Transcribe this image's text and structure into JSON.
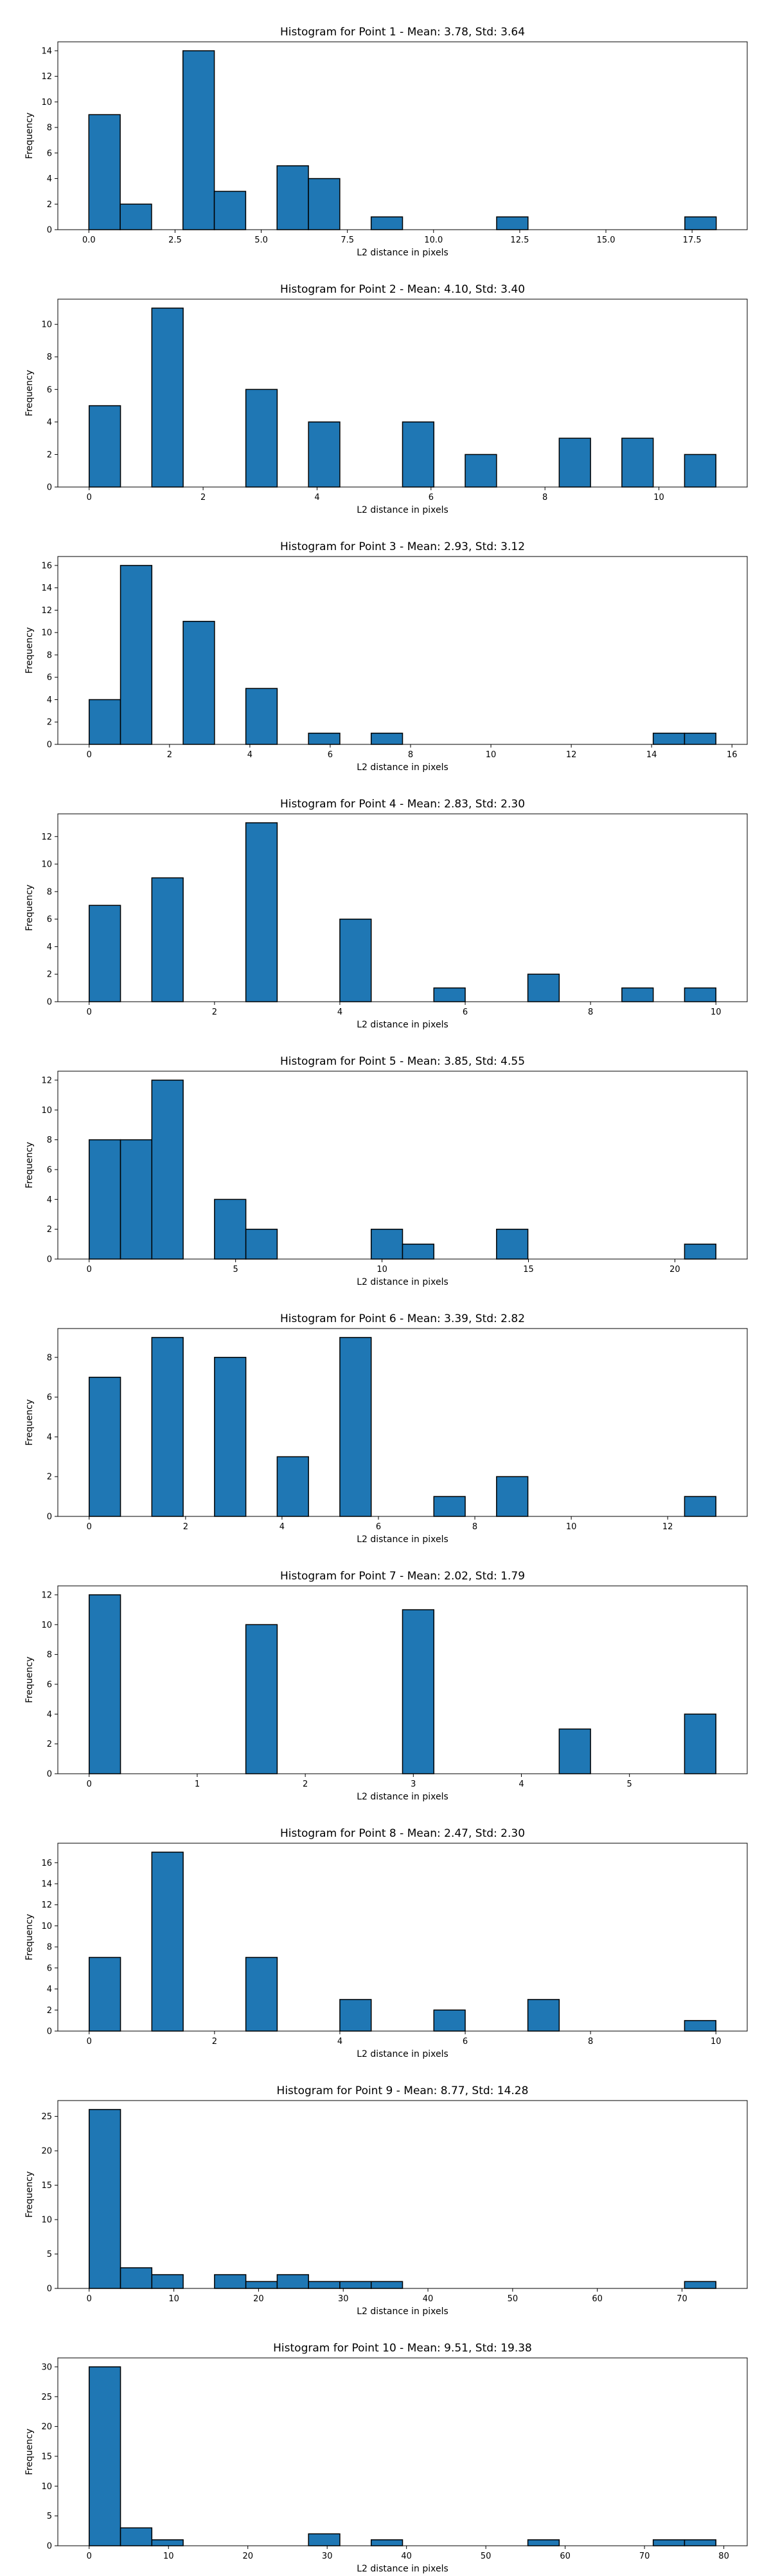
{
  "figure": {
    "bar_color": "#1f77b4",
    "edge_color": "#000000"
  },
  "chart_data": [
    {
      "type": "bar",
      "title": "Histogram for Point 1 - Mean: 3.78, Std: 3.64",
      "xlabel": "L2 distance in pixels",
      "ylabel": "Frequency",
      "xlim": [
        -0.9,
        19.1
      ],
      "ylim": [
        0,
        14.7
      ],
      "xticks": [
        0.0,
        2.5,
        5.0,
        7.5,
        10.0,
        12.5,
        15.0,
        17.5
      ],
      "xtick_labels": [
        "0.0",
        "2.5",
        "5.0",
        "7.5",
        "10.0",
        "12.5",
        "15.0",
        "17.5"
      ],
      "yticks": [
        0,
        2,
        4,
        6,
        8,
        10,
        12,
        14
      ],
      "bins": [
        {
          "x0": 0.0,
          "x1": 0.91,
          "count": 9
        },
        {
          "x0": 0.91,
          "x1": 1.82,
          "count": 2
        },
        {
          "x0": 2.73,
          "x1": 3.64,
          "count": 14
        },
        {
          "x0": 3.64,
          "x1": 4.55,
          "count": 3
        },
        {
          "x0": 5.46,
          "x1": 6.37,
          "count": 5
        },
        {
          "x0": 6.37,
          "x1": 7.28,
          "count": 4
        },
        {
          "x0": 8.19,
          "x1": 9.1,
          "count": 1
        },
        {
          "x0": 11.83,
          "x1": 12.74,
          "count": 1
        },
        {
          "x0": 17.29,
          "x1": 18.2,
          "count": 1
        }
      ]
    },
    {
      "type": "bar",
      "title": "Histogram for Point 2 - Mean: 4.10, Std: 3.40",
      "xlabel": "L2 distance in pixels",
      "ylabel": "Frequency",
      "xlim": [
        -0.55,
        11.55
      ],
      "ylim": [
        0,
        11.55
      ],
      "xticks": [
        0,
        2,
        4,
        6,
        8,
        10
      ],
      "xtick_labels": [
        "0",
        "2",
        "4",
        "6",
        "8",
        "10"
      ],
      "yticks": [
        0,
        2,
        4,
        6,
        8,
        10
      ],
      "bins": [
        {
          "x0": 0.0,
          "x1": 0.55,
          "count": 5
        },
        {
          "x0": 1.1,
          "x1": 1.65,
          "count": 11
        },
        {
          "x0": 2.75,
          "x1": 3.3,
          "count": 6
        },
        {
          "x0": 3.85,
          "x1": 4.4,
          "count": 4
        },
        {
          "x0": 5.5,
          "x1": 6.05,
          "count": 4
        },
        {
          "x0": 6.6,
          "x1": 7.15,
          "count": 2
        },
        {
          "x0": 8.25,
          "x1": 8.8,
          "count": 3
        },
        {
          "x0": 9.35,
          "x1": 9.9,
          "count": 3
        },
        {
          "x0": 10.45,
          "x1": 11.0,
          "count": 2
        }
      ]
    },
    {
      "type": "bar",
      "title": "Histogram for Point 3 - Mean: 2.93, Std: 3.12",
      "xlabel": "L2 distance in pixels",
      "ylabel": "Frequency",
      "xlim": [
        -0.78,
        16.38
      ],
      "ylim": [
        0,
        16.8
      ],
      "xticks": [
        0,
        2,
        4,
        6,
        8,
        10,
        12,
        14,
        16
      ],
      "xtick_labels": [
        "0",
        "2",
        "4",
        "6",
        "8",
        "10",
        "12",
        "14",
        "16"
      ],
      "yticks": [
        0,
        2,
        4,
        6,
        8,
        10,
        12,
        14,
        16
      ],
      "bins": [
        {
          "x0": 0.0,
          "x1": 0.78,
          "count": 4
        },
        {
          "x0": 0.78,
          "x1": 1.56,
          "count": 16
        },
        {
          "x0": 2.34,
          "x1": 3.12,
          "count": 11
        },
        {
          "x0": 3.9,
          "x1": 4.68,
          "count": 5
        },
        {
          "x0": 5.46,
          "x1": 6.24,
          "count": 1
        },
        {
          "x0": 7.02,
          "x1": 7.8,
          "count": 1
        },
        {
          "x0": 14.04,
          "x1": 14.82,
          "count": 1
        },
        {
          "x0": 14.82,
          "x1": 15.6,
          "count": 1
        }
      ]
    },
    {
      "type": "bar",
      "title": "Histogram for Point 4 - Mean: 2.83, Std: 2.30",
      "xlabel": "L2 distance in pixels",
      "ylabel": "Frequency",
      "xlim": [
        -0.5,
        10.5
      ],
      "ylim": [
        0,
        13.65
      ],
      "xticks": [
        0,
        2,
        4,
        6,
        8,
        10
      ],
      "xtick_labels": [
        "0",
        "2",
        "4",
        "6",
        "8",
        "10"
      ],
      "yticks": [
        0,
        2,
        4,
        6,
        8,
        10,
        12
      ],
      "bins": [
        {
          "x0": 0.0,
          "x1": 0.5,
          "count": 7
        },
        {
          "x0": 1.0,
          "x1": 1.5,
          "count": 9
        },
        {
          "x0": 2.5,
          "x1": 3.0,
          "count": 13
        },
        {
          "x0": 4.0,
          "x1": 4.5,
          "count": 6
        },
        {
          "x0": 5.5,
          "x1": 6.0,
          "count": 1
        },
        {
          "x0": 7.0,
          "x1": 7.5,
          "count": 2
        },
        {
          "x0": 8.5,
          "x1": 9.0,
          "count": 1
        },
        {
          "x0": 9.5,
          "x1": 10.0,
          "count": 1
        }
      ]
    },
    {
      "type": "bar",
      "title": "Histogram for Point 5 - Mean: 3.85, Std: 4.55",
      "xlabel": "L2 distance in pixels",
      "ylabel": "Frequency",
      "xlim": [
        -1.07,
        22.47
      ],
      "ylim": [
        0,
        12.6
      ],
      "xticks": [
        0,
        5,
        10,
        15,
        20
      ],
      "xtick_labels": [
        "0",
        "5",
        "10",
        "15",
        "20"
      ],
      "yticks": [
        0,
        2,
        4,
        6,
        8,
        10,
        12
      ],
      "bins": [
        {
          "x0": 0.0,
          "x1": 1.07,
          "count": 8
        },
        {
          "x0": 1.07,
          "x1": 2.14,
          "count": 8
        },
        {
          "x0": 2.14,
          "x1": 3.21,
          "count": 12
        },
        {
          "x0": 4.28,
          "x1": 5.35,
          "count": 4
        },
        {
          "x0": 5.35,
          "x1": 6.42,
          "count": 2
        },
        {
          "x0": 9.63,
          "x1": 10.7,
          "count": 2
        },
        {
          "x0": 10.7,
          "x1": 11.77,
          "count": 1
        },
        {
          "x0": 13.91,
          "x1": 14.98,
          "count": 2
        },
        {
          "x0": 20.33,
          "x1": 21.4,
          "count": 1
        }
      ]
    },
    {
      "type": "bar",
      "title": "Histogram for Point 6 - Mean: 3.39, Std: 2.82",
      "xlabel": "L2 distance in pixels",
      "ylabel": "Frequency",
      "xlim": [
        -0.65,
        13.65
      ],
      "ylim": [
        0,
        9.45
      ],
      "xticks": [
        0,
        2,
        4,
        6,
        8,
        10,
        12
      ],
      "xtick_labels": [
        "0",
        "2",
        "4",
        "6",
        "8",
        "10",
        "12"
      ],
      "yticks": [
        0,
        2,
        4,
        6,
        8
      ],
      "bins": [
        {
          "x0": 0.0,
          "x1": 0.65,
          "count": 7
        },
        {
          "x0": 1.3,
          "x1": 1.95,
          "count": 9
        },
        {
          "x0": 2.6,
          "x1": 3.25,
          "count": 8
        },
        {
          "x0": 3.9,
          "x1": 4.55,
          "count": 3
        },
        {
          "x0": 5.2,
          "x1": 5.85,
          "count": 9
        },
        {
          "x0": 7.15,
          "x1": 7.8,
          "count": 1
        },
        {
          "x0": 8.45,
          "x1": 9.1,
          "count": 2
        },
        {
          "x0": 12.35,
          "x1": 13.0,
          "count": 1
        }
      ]
    },
    {
      "type": "bar",
      "title": "Histogram for Point 7 - Mean: 2.02, Std: 1.79",
      "xlabel": "L2 distance in pixels",
      "ylabel": "Frequency",
      "xlim": [
        -0.29,
        6.09
      ],
      "ylim": [
        0,
        12.6
      ],
      "xticks": [
        0,
        1,
        2,
        3,
        4,
        5
      ],
      "xtick_labels": [
        "0",
        "1",
        "2",
        "3",
        "4",
        "5"
      ],
      "yticks": [
        0,
        2,
        4,
        6,
        8,
        10,
        12
      ],
      "bins": [
        {
          "x0": 0.0,
          "x1": 0.29,
          "count": 12
        },
        {
          "x0": 1.45,
          "x1": 1.74,
          "count": 10
        },
        {
          "x0": 2.9,
          "x1": 3.19,
          "count": 11
        },
        {
          "x0": 4.35,
          "x1": 4.64,
          "count": 3
        },
        {
          "x0": 5.51,
          "x1": 5.8,
          "count": 4
        }
      ]
    },
    {
      "type": "bar",
      "title": "Histogram for Point 8 - Mean: 2.47, Std: 2.30",
      "xlabel": "L2 distance in pixels",
      "ylabel": "Frequency",
      "xlim": [
        -0.5,
        10.5
      ],
      "ylim": [
        0,
        17.85
      ],
      "xticks": [
        0,
        2,
        4,
        6,
        8,
        10
      ],
      "xtick_labels": [
        "0",
        "2",
        "4",
        "6",
        "8",
        "10"
      ],
      "yticks": [
        0,
        2,
        4,
        6,
        8,
        10,
        12,
        14,
        16
      ],
      "bins": [
        {
          "x0": 0.0,
          "x1": 0.5,
          "count": 7
        },
        {
          "x0": 1.0,
          "x1": 1.5,
          "count": 17
        },
        {
          "x0": 2.5,
          "x1": 3.0,
          "count": 7
        },
        {
          "x0": 4.0,
          "x1": 4.5,
          "count": 3
        },
        {
          "x0": 5.5,
          "x1": 6.0,
          "count": 2
        },
        {
          "x0": 7.0,
          "x1": 7.5,
          "count": 3
        },
        {
          "x0": 9.5,
          "x1": 10.0,
          "count": 1
        }
      ]
    },
    {
      "type": "bar",
      "title": "Histogram for Point 9 - Mean: 8.77, Std: 14.28",
      "xlabel": "L2 distance in pixels",
      "ylabel": "Frequency",
      "xlim": [
        -3.7,
        77.7
      ],
      "ylim": [
        0,
        27.3
      ],
      "xticks": [
        0,
        10,
        20,
        30,
        40,
        50,
        60,
        70
      ],
      "xtick_labels": [
        "0",
        "10",
        "20",
        "30",
        "40",
        "50",
        "60",
        "70"
      ],
      "yticks": [
        0,
        5,
        10,
        15,
        20,
        25
      ],
      "bins": [
        {
          "x0": 0.0,
          "x1": 3.7,
          "count": 26
        },
        {
          "x0": 3.7,
          "x1": 7.4,
          "count": 3
        },
        {
          "x0": 7.4,
          "x1": 11.1,
          "count": 2
        },
        {
          "x0": 14.8,
          "x1": 18.5,
          "count": 2
        },
        {
          "x0": 18.5,
          "x1": 22.2,
          "count": 1
        },
        {
          "x0": 22.2,
          "x1": 25.9,
          "count": 2
        },
        {
          "x0": 25.9,
          "x1": 29.6,
          "count": 1
        },
        {
          "x0": 29.6,
          "x1": 33.3,
          "count": 1
        },
        {
          "x0": 33.3,
          "x1": 37.0,
          "count": 1
        },
        {
          "x0": 70.3,
          "x1": 74.0,
          "count": 1
        }
      ]
    },
    {
      "type": "bar",
      "title": "Histogram for Point 10 - Mean: 9.51, Std: 19.38",
      "xlabel": "L2 distance in pixels",
      "ylabel": "Frequency",
      "xlim": [
        -3.95,
        82.95
      ],
      "ylim": [
        0,
        31.5
      ],
      "xticks": [
        0,
        10,
        20,
        30,
        40,
        50,
        60,
        70,
        80
      ],
      "xtick_labels": [
        "0",
        "10",
        "20",
        "30",
        "40",
        "50",
        "60",
        "70",
        "80"
      ],
      "yticks": [
        0,
        5,
        10,
        15,
        20,
        25,
        30
      ],
      "bins": [
        {
          "x0": 0.0,
          "x1": 3.95,
          "count": 30
        },
        {
          "x0": 3.95,
          "x1": 7.9,
          "count": 3
        },
        {
          "x0": 7.9,
          "x1": 11.85,
          "count": 1
        },
        {
          "x0": 27.65,
          "x1": 31.6,
          "count": 2
        },
        {
          "x0": 35.55,
          "x1": 39.5,
          "count": 1
        },
        {
          "x0": 55.3,
          "x1": 59.25,
          "count": 1
        },
        {
          "x0": 71.1,
          "x1": 75.05,
          "count": 1
        },
        {
          "x0": 75.05,
          "x1": 79.0,
          "count": 1
        }
      ]
    }
  ]
}
